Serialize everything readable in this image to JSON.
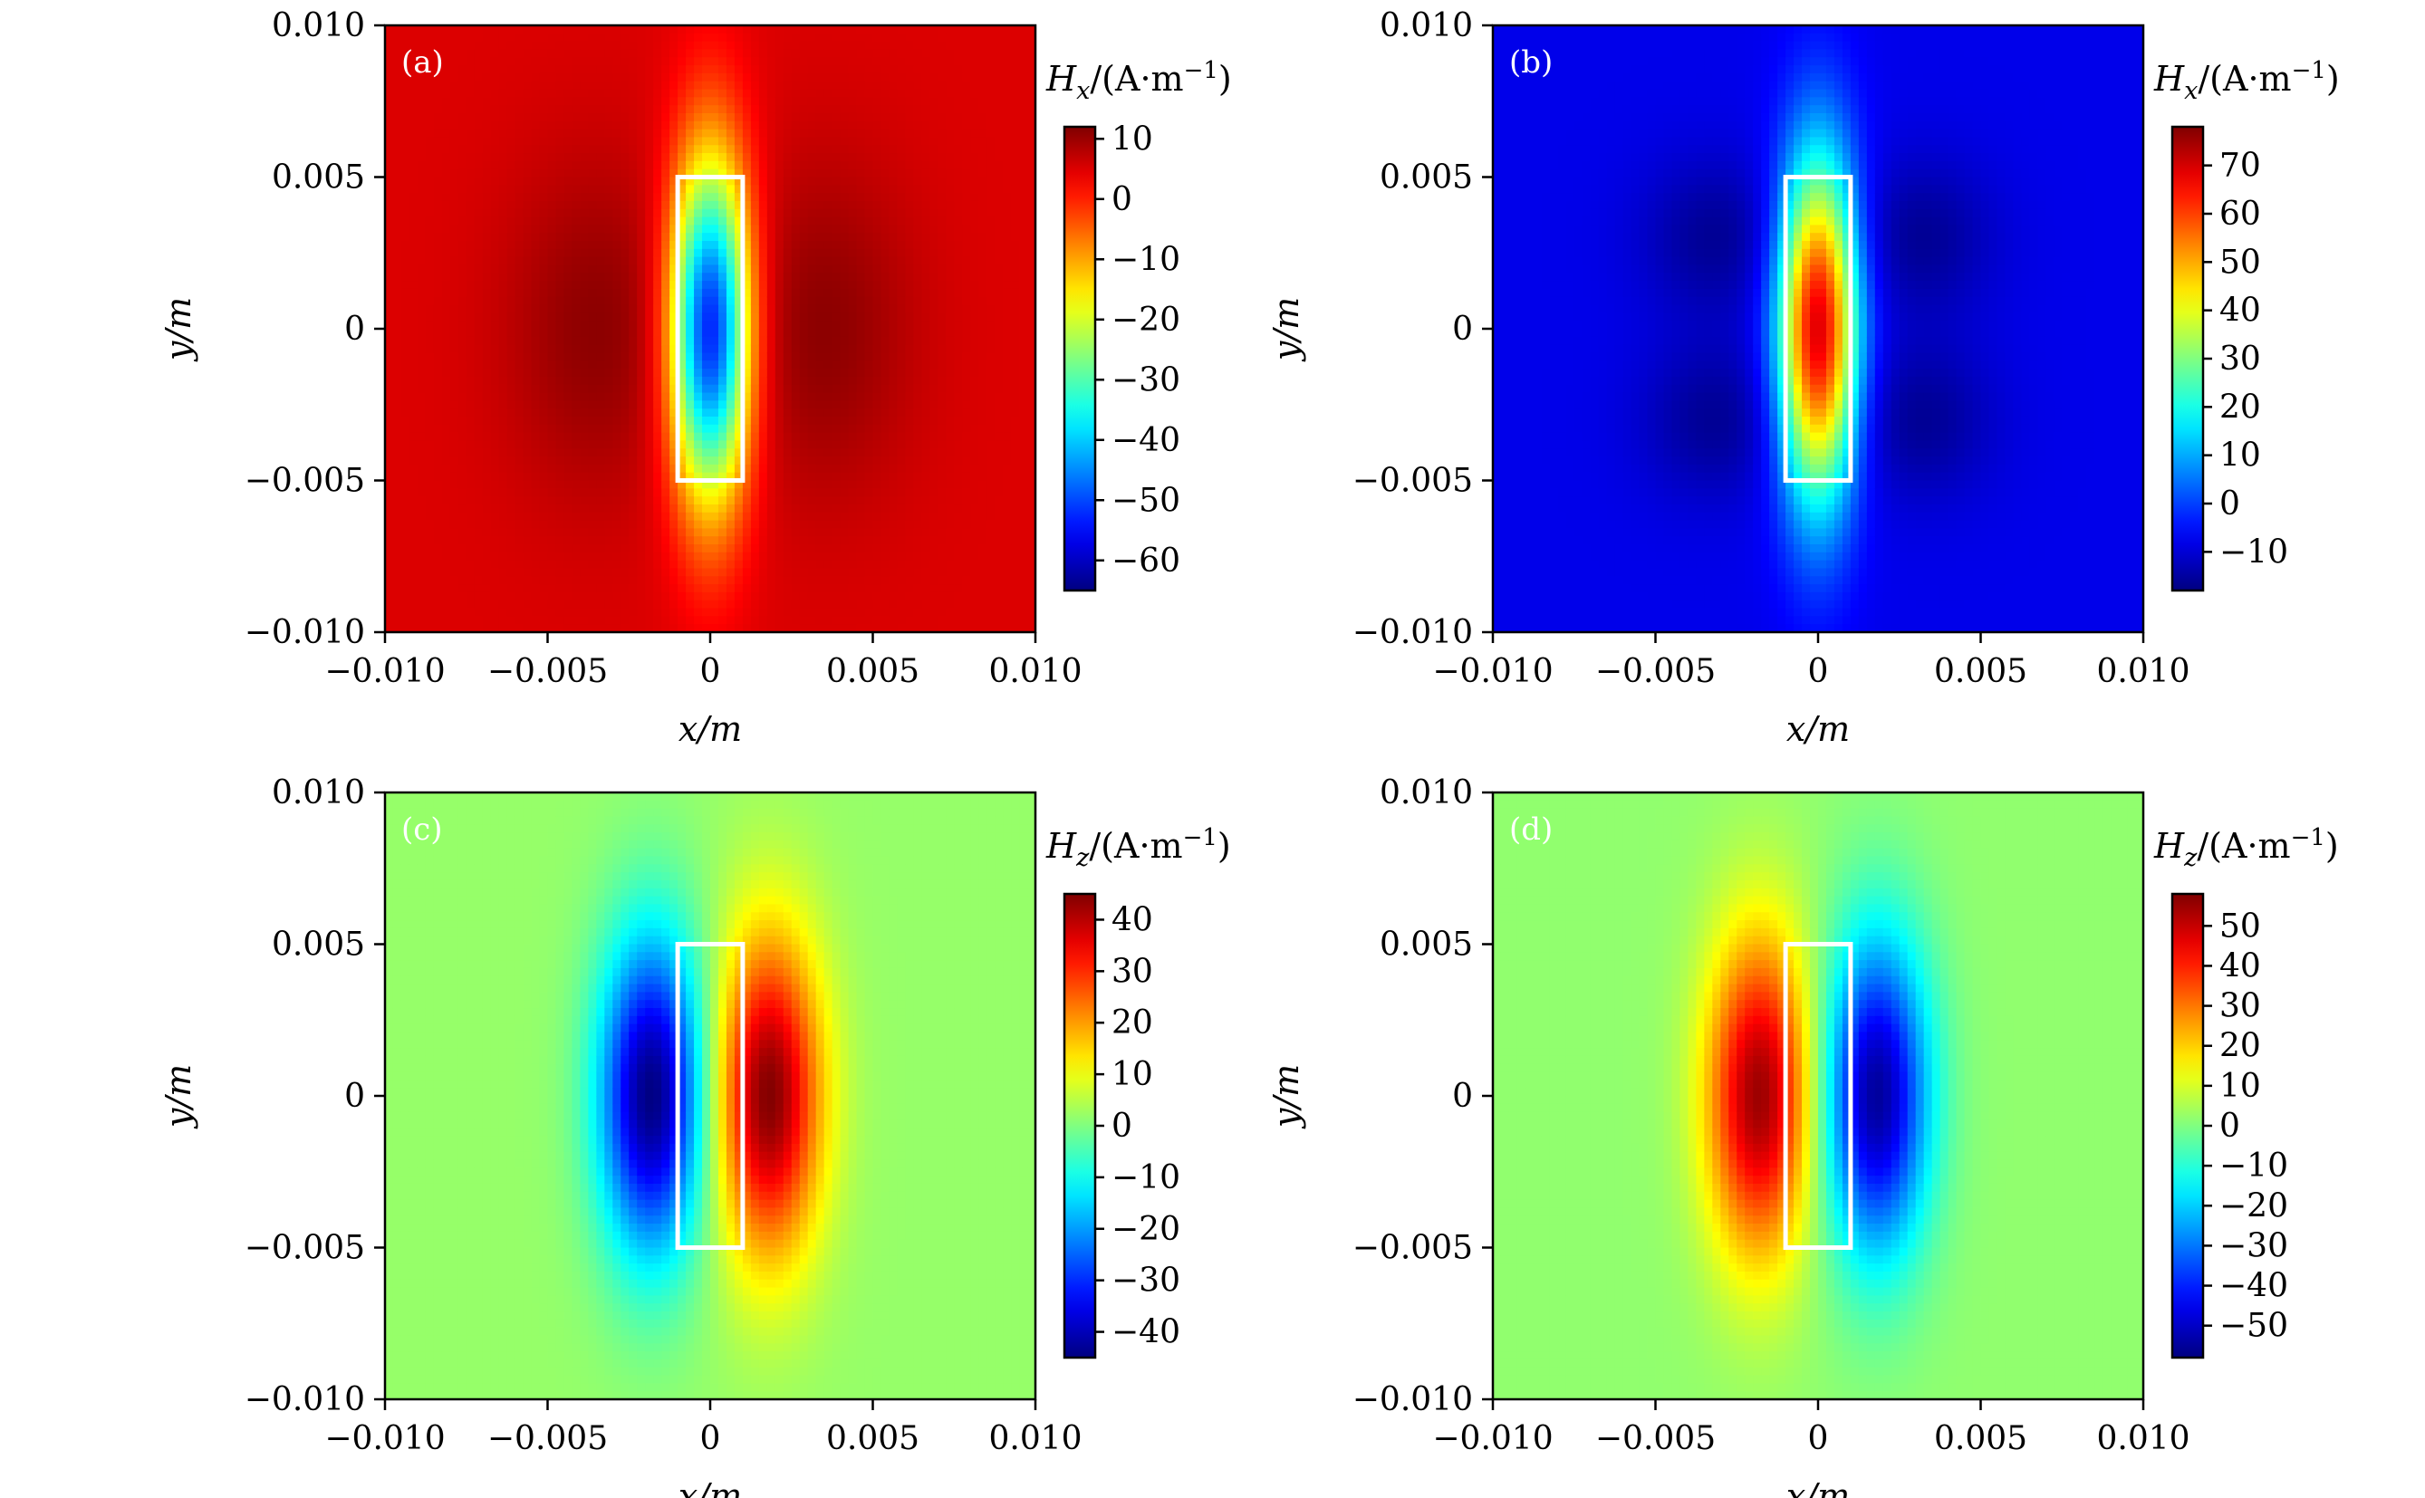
{
  "chart_data": [
    {
      "type": "heatmap",
      "panel_label": "(a)",
      "quantity": "H_x",
      "colorbar_label": "Hx/(A·m⁻¹)",
      "colormap": "jet",
      "xlabel": "x/m",
      "ylabel": "y/m",
      "xlim": [
        -0.01,
        0.01
      ],
      "ylim": [
        -0.01,
        0.01
      ],
      "x_ticks": [
        "−0.010",
        "−0.005",
        "0",
        "0.005",
        "0.010"
      ],
      "y_ticks": [
        "0.010",
        "0.005",
        "0",
        "−0.005",
        "−0.010"
      ],
      "colorbar_range": [
        -65,
        12
      ],
      "colorbar_ticks": [
        10,
        0,
        -10,
        -20,
        -30,
        -40,
        -50,
        -60
      ],
      "colorbar_tick_labels": [
        "10",
        "0",
        "−10",
        "−20",
        "−30",
        "−40",
        "−50",
        "−60"
      ],
      "magnet_rect": {
        "x": [
          -0.001,
          0.001
        ],
        "y": [
          -0.005,
          0.005
        ]
      },
      "field_summary": {
        "inside_value": -55,
        "side_lobes_value": 11,
        "background_value": 5
      }
    },
    {
      "type": "heatmap",
      "panel_label": "(b)",
      "quantity": "H_x",
      "colorbar_label": "Hx/(A·m⁻¹)",
      "colormap": "jet",
      "xlabel": "x/m",
      "ylabel": "y/m",
      "xlim": [
        -0.01,
        0.01
      ],
      "ylim": [
        -0.01,
        0.01
      ],
      "x_ticks": [
        "−0.010",
        "−0.005",
        "0",
        "0.005",
        "0.010"
      ],
      "y_ticks": [
        "0.010",
        "0.005",
        "0",
        "−0.005",
        "−0.010"
      ],
      "colorbar_range": [
        -18,
        78
      ],
      "colorbar_ticks": [
        70,
        60,
        50,
        40,
        30,
        20,
        10,
        0,
        -10
      ],
      "colorbar_tick_labels": [
        "70",
        "60",
        "50",
        "40",
        "30",
        "20",
        "10",
        "0",
        "−10"
      ],
      "magnet_rect": {
        "x": [
          -0.001,
          0.001
        ],
        "y": [
          -0.005,
          0.005
        ]
      },
      "field_summary": {
        "inside_value": 70,
        "side_lobes_value": -16,
        "background_value": -8
      }
    },
    {
      "type": "heatmap",
      "panel_label": "(c)",
      "quantity": "H_z",
      "colorbar_label": "Hz/(A·m⁻¹)",
      "colormap": "jet",
      "xlabel": "x/m",
      "ylabel": "y/m",
      "xlim": [
        -0.01,
        0.01
      ],
      "ylim": [
        -0.01,
        0.01
      ],
      "x_ticks": [
        "−0.010",
        "−0.005",
        "0",
        "0.005",
        "0.010"
      ],
      "y_ticks": [
        "0.010",
        "0.005",
        "0",
        "−0.005",
        "−0.010"
      ],
      "colorbar_range": [
        -45,
        45
      ],
      "colorbar_ticks": [
        40,
        30,
        20,
        10,
        0,
        -10,
        -20,
        -30,
        -40
      ],
      "colorbar_tick_labels": [
        "40",
        "30",
        "20",
        "10",
        "0",
        "−10",
        "−20",
        "−30",
        "−40"
      ],
      "magnet_rect": {
        "x": [
          -0.001,
          0.001
        ],
        "y": [
          -0.005,
          0.005
        ]
      },
      "field_summary": {
        "left_lobe_value": -45,
        "right_lobe_value": 45,
        "background_value": 2
      }
    },
    {
      "type": "heatmap",
      "panel_label": "(d)",
      "quantity": "H_z",
      "colorbar_label": "Hz/(A·m⁻¹)",
      "colormap": "jet",
      "xlabel": "x/m",
      "ylabel": "y/m",
      "xlim": [
        -0.01,
        0.01
      ],
      "ylim": [
        -0.01,
        0.01
      ],
      "x_ticks": [
        "−0.010",
        "−0.005",
        "0",
        "0.005",
        "0.010"
      ],
      "y_ticks": [
        "0.010",
        "0.005",
        "0",
        "−0.005",
        "−0.010"
      ],
      "colorbar_range": [
        -58,
        58
      ],
      "colorbar_ticks": [
        50,
        40,
        30,
        20,
        10,
        0,
        -10,
        -20,
        -30,
        -40,
        -50
      ],
      "colorbar_tick_labels": [
        "50",
        "40",
        "30",
        "20",
        "10",
        "0",
        "−10",
        "−20",
        "−30",
        "−40",
        "−50"
      ],
      "magnet_rect": {
        "x": [
          -0.001,
          0.001
        ],
        "y": [
          -0.005,
          0.005
        ]
      },
      "field_summary": {
        "left_lobe_value": 55,
        "right_lobe_value": -55,
        "background_value": 2
      }
    }
  ]
}
